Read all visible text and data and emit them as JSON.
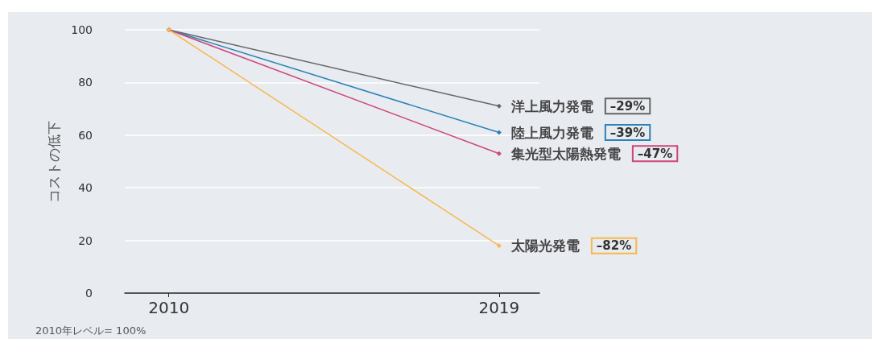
{
  "chart_data": {
    "type": "line",
    "ylabel": "コストの低下",
    "annotations": [
      "2010年レベル= 100%",
      "–29%",
      "–39%",
      "–47%",
      "–82%"
    ],
    "x": [
      2010,
      2019
    ],
    "xlim": [
      2008.8,
      2020.1
    ],
    "xticks": [
      2010,
      2019
    ],
    "ylim": [
      0,
      100
    ],
    "yticks": [
      0,
      20,
      40,
      60,
      80,
      100
    ],
    "grid": "y",
    "legend": "right",
    "marker": "diamond",
    "line_style": "solid",
    "series": [
      {
        "name": "洋上風力発電",
        "color": "#666666",
        "values": [
          100,
          71
        ]
      },
      {
        "name": "陸上風力発電",
        "color": "#2b83b8",
        "values": [
          100,
          61
        ]
      },
      {
        "name": "集光型太陽熱発電",
        "color": "#d0457d",
        "values": [
          100,
          53
        ]
      },
      {
        "name": "太陽光発電",
        "color": "#f8b84a",
        "values": [
          100,
          18
        ]
      }
    ]
  }
}
